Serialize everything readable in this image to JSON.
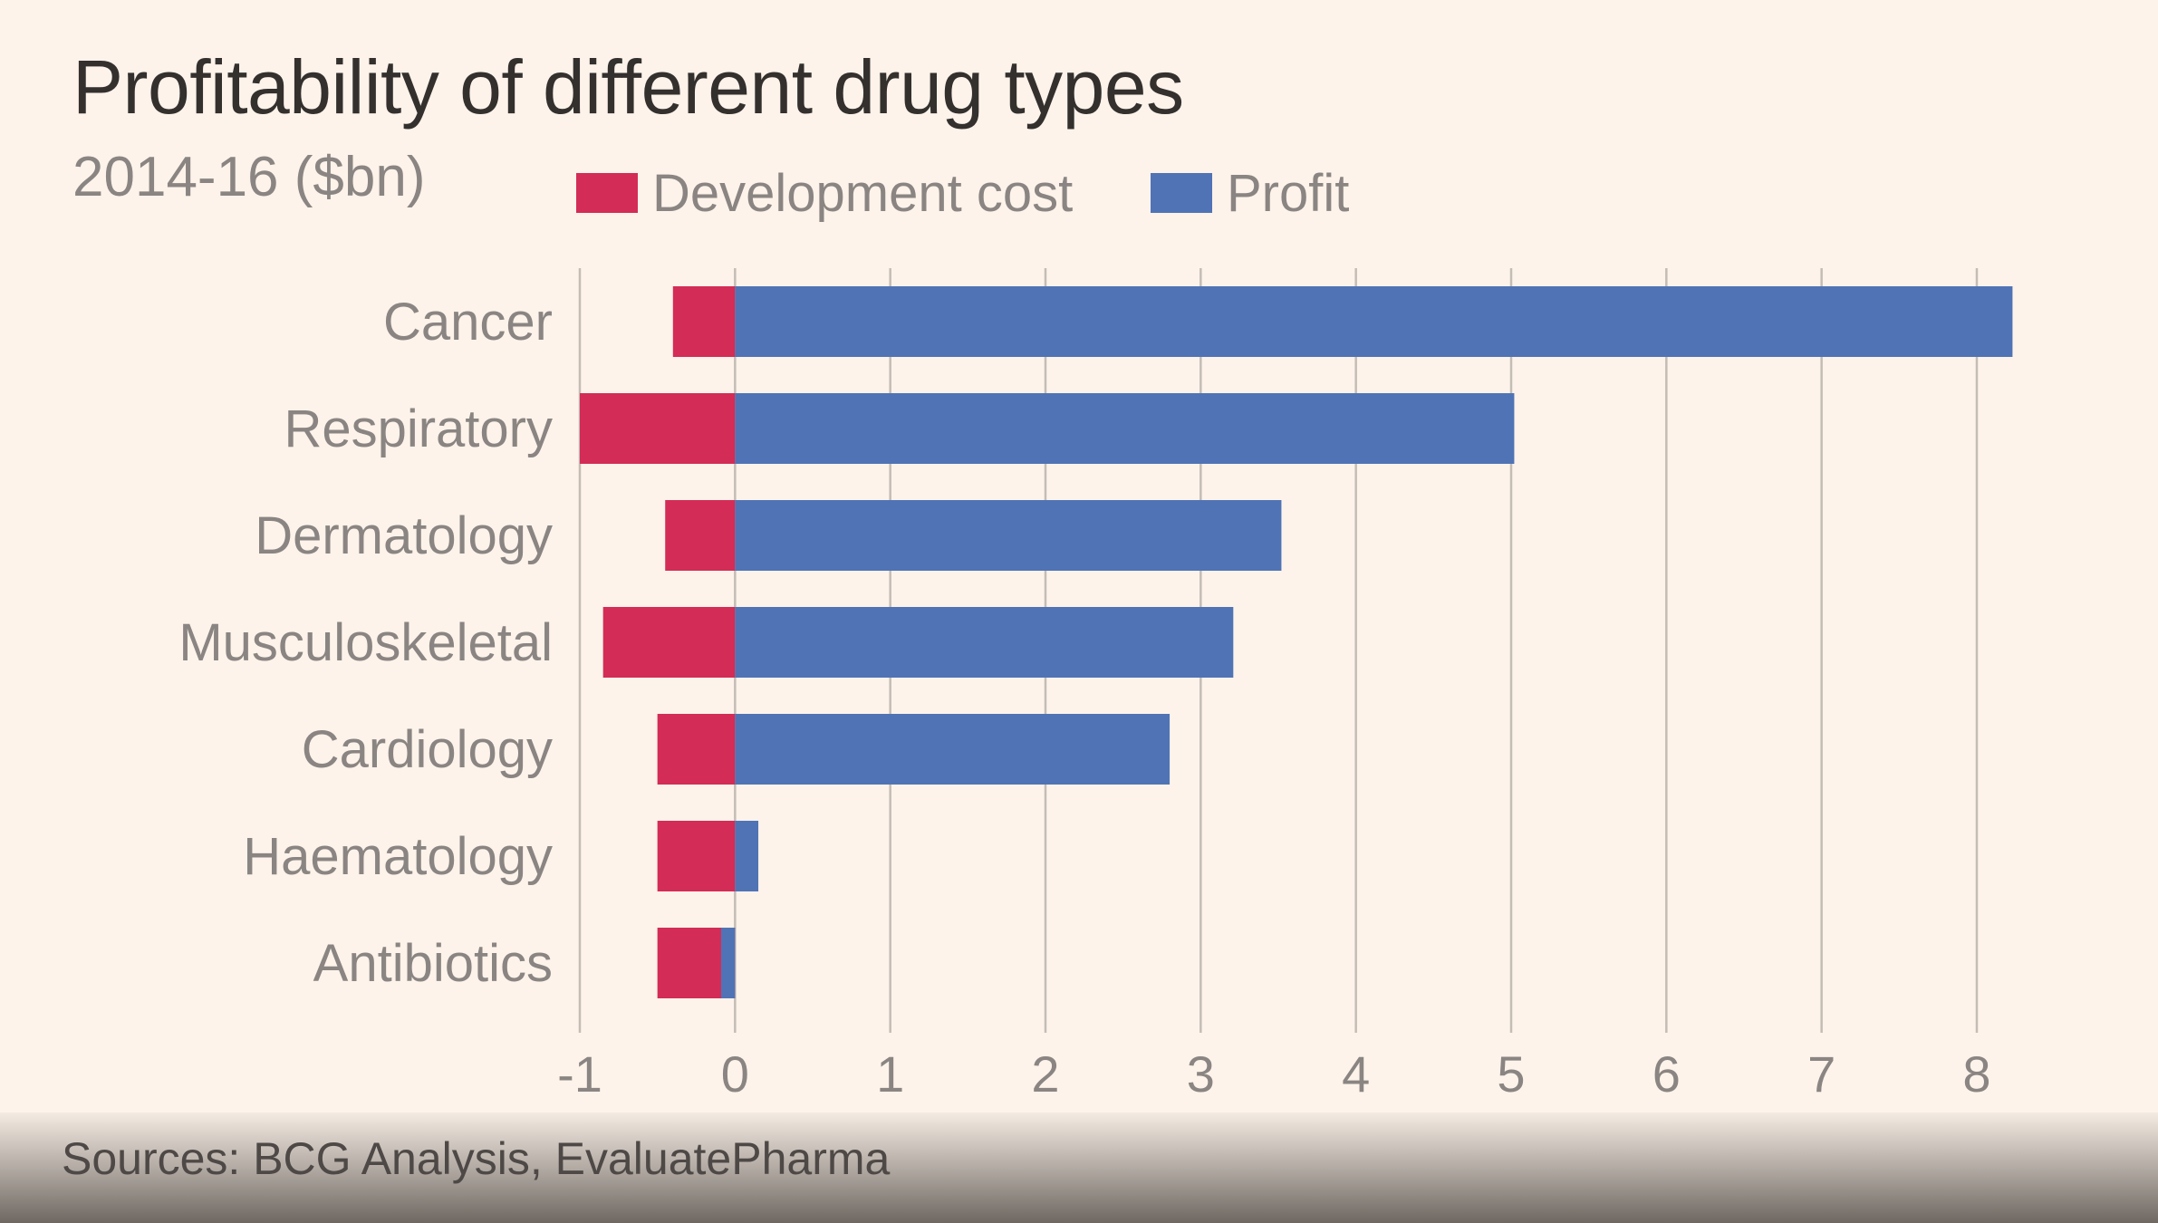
{
  "chart_data": {
    "type": "bar",
    "orientation": "horizontal",
    "stacked": true,
    "title": "Profitability of different drug types",
    "subtitle": "2014-16 ($bn)",
    "categories": [
      "Cancer",
      "Respiratory",
      "Dermatology",
      "Musculoskeletal",
      "Cardiology",
      "Haematology",
      "Antibiotics"
    ],
    "series": [
      {
        "name": "Development cost",
        "color": "#d32c56",
        "values": [
          -0.4,
          -1.0,
          -0.45,
          -0.85,
          -0.5,
          -0.5,
          -0.5
        ]
      },
      {
        "name": "Profit",
        "color": "#5073b6",
        "values": [
          8.23,
          5.02,
          3.52,
          3.21,
          2.8,
          0.15,
          -0.09
        ]
      }
    ],
    "xlim": [
      -1,
      8
    ],
    "xticks": [
      "-1",
      "0",
      "1",
      "2",
      "3",
      "4",
      "5",
      "6",
      "7",
      "8"
    ],
    "grid": true,
    "legend": "top"
  },
  "source": "Sources: BCG Analysis, EvaluatePharma"
}
